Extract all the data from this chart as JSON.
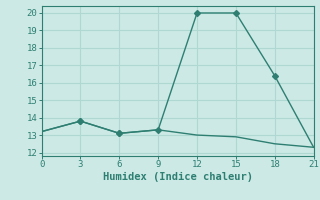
{
  "line1_x": [
    0,
    3,
    6,
    9,
    12,
    15,
    18,
    21
  ],
  "line1_y": [
    13.2,
    13.8,
    13.1,
    13.3,
    20.0,
    20.0,
    16.4,
    12.3
  ],
  "line2_x": [
    0,
    3,
    6,
    9,
    12,
    15,
    18,
    21
  ],
  "line2_y": [
    13.2,
    13.8,
    13.1,
    13.3,
    13.0,
    12.9,
    12.5,
    12.3
  ],
  "line_color": "#2e7f72",
  "bg_color": "#cce9e5",
  "grid_color": "#b0d8d2",
  "xlabel": "Humidex (Indice chaleur)",
  "xlabel_fontsize": 7.5,
  "tick_fontsize": 6.5,
  "xlim": [
    0,
    21
  ],
  "ylim": [
    11.8,
    20.4
  ],
  "xticks": [
    0,
    3,
    6,
    9,
    12,
    15,
    18,
    21
  ],
  "yticks": [
    12,
    13,
    14,
    15,
    16,
    17,
    18,
    19,
    20
  ],
  "marker": "D",
  "marker_size": 3,
  "line_width": 1.0
}
